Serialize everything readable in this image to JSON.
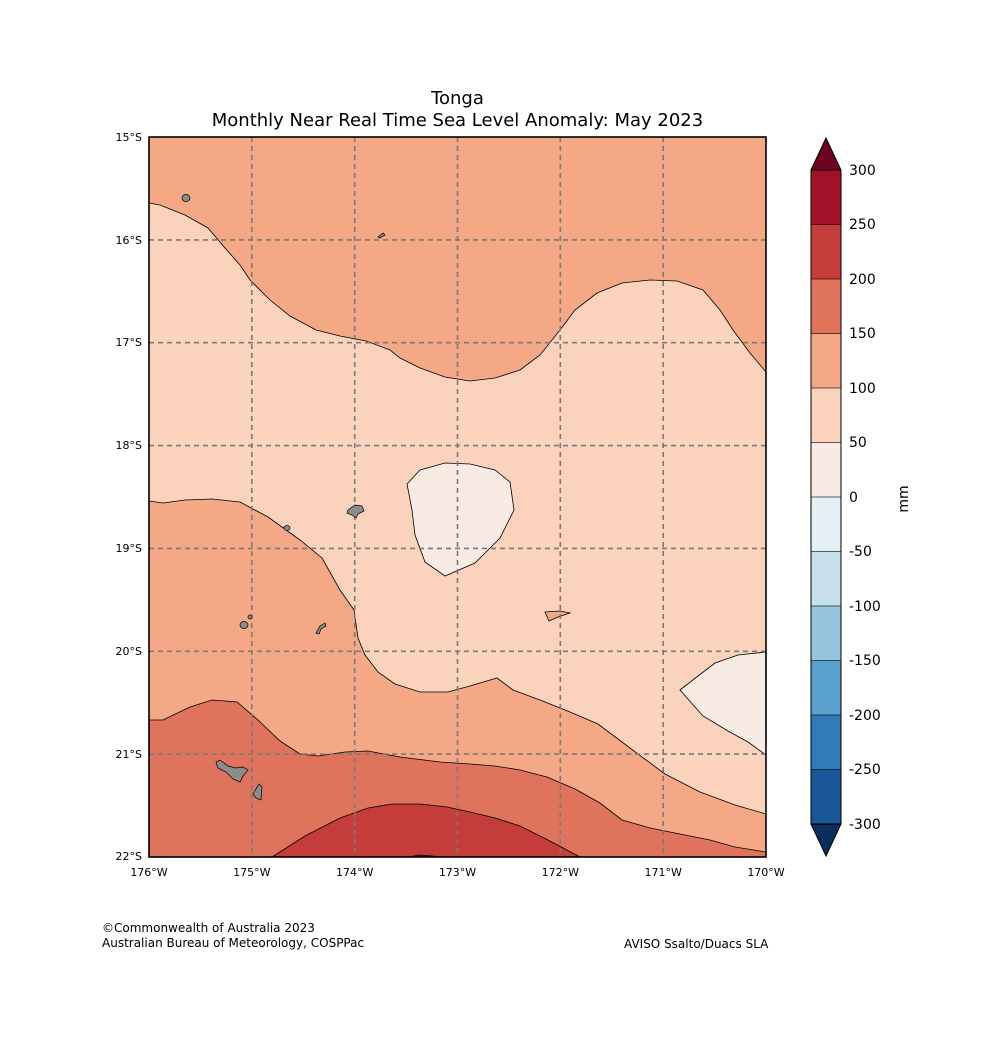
{
  "title": {
    "line1": "Tonga",
    "line2": "Monthly Near Real Time Sea Level Anomaly: May 2023"
  },
  "map": {
    "lon_range": [
      -176,
      -170
    ],
    "lat_range": [
      -22,
      -15
    ],
    "lon_ticks": [
      "176°W",
      "175°W",
      "174°W",
      "173°W",
      "172°W",
      "171°W",
      "170°W"
    ],
    "lat_ticks": [
      "15°S",
      "16°S",
      "17°S",
      "18°S",
      "19°S",
      "20°S",
      "21°S",
      "22°S"
    ],
    "gridlines": "dashed",
    "land_color": "#8c8c8c",
    "contour_fill_ranges": [
      {
        "range": "0 to 50",
        "color": "#f7ebe3"
      },
      {
        "range": "50 to 100",
        "color": "#fbd2bc"
      },
      {
        "range": "100 to 150",
        "color": "#f4a886"
      },
      {
        "range": "150 to 200",
        "color": "#e0735c"
      },
      {
        "range": "200 to 250",
        "color": "#c53d3a"
      },
      {
        "range": "250 to 300",
        "color": "#a11228"
      }
    ]
  },
  "colorbar": {
    "label": "mm",
    "ticks": [
      "300",
      "250",
      "200",
      "150",
      "100",
      "50",
      "0",
      "-50",
      "-100",
      "-150",
      "-200",
      "-250",
      "-300"
    ],
    "colors": [
      "#a11228",
      "#c53d3a",
      "#e0735c",
      "#f4a886",
      "#fbd2bc",
      "#f7ebe3",
      "#e6eff4",
      "#c6dfeb",
      "#95c4de",
      "#5ba1cd",
      "#317bb9",
      "#1a5799"
    ],
    "extend_max_color": "#6a0220",
    "extend_min_color": "#0c2e5f"
  },
  "credits": {
    "line1": "©Commonwealth of Australia 2023",
    "line2": "Australian Bureau of Meteorology, COSPPac",
    "source": "AVISO Ssalto/Duacs SLA"
  }
}
